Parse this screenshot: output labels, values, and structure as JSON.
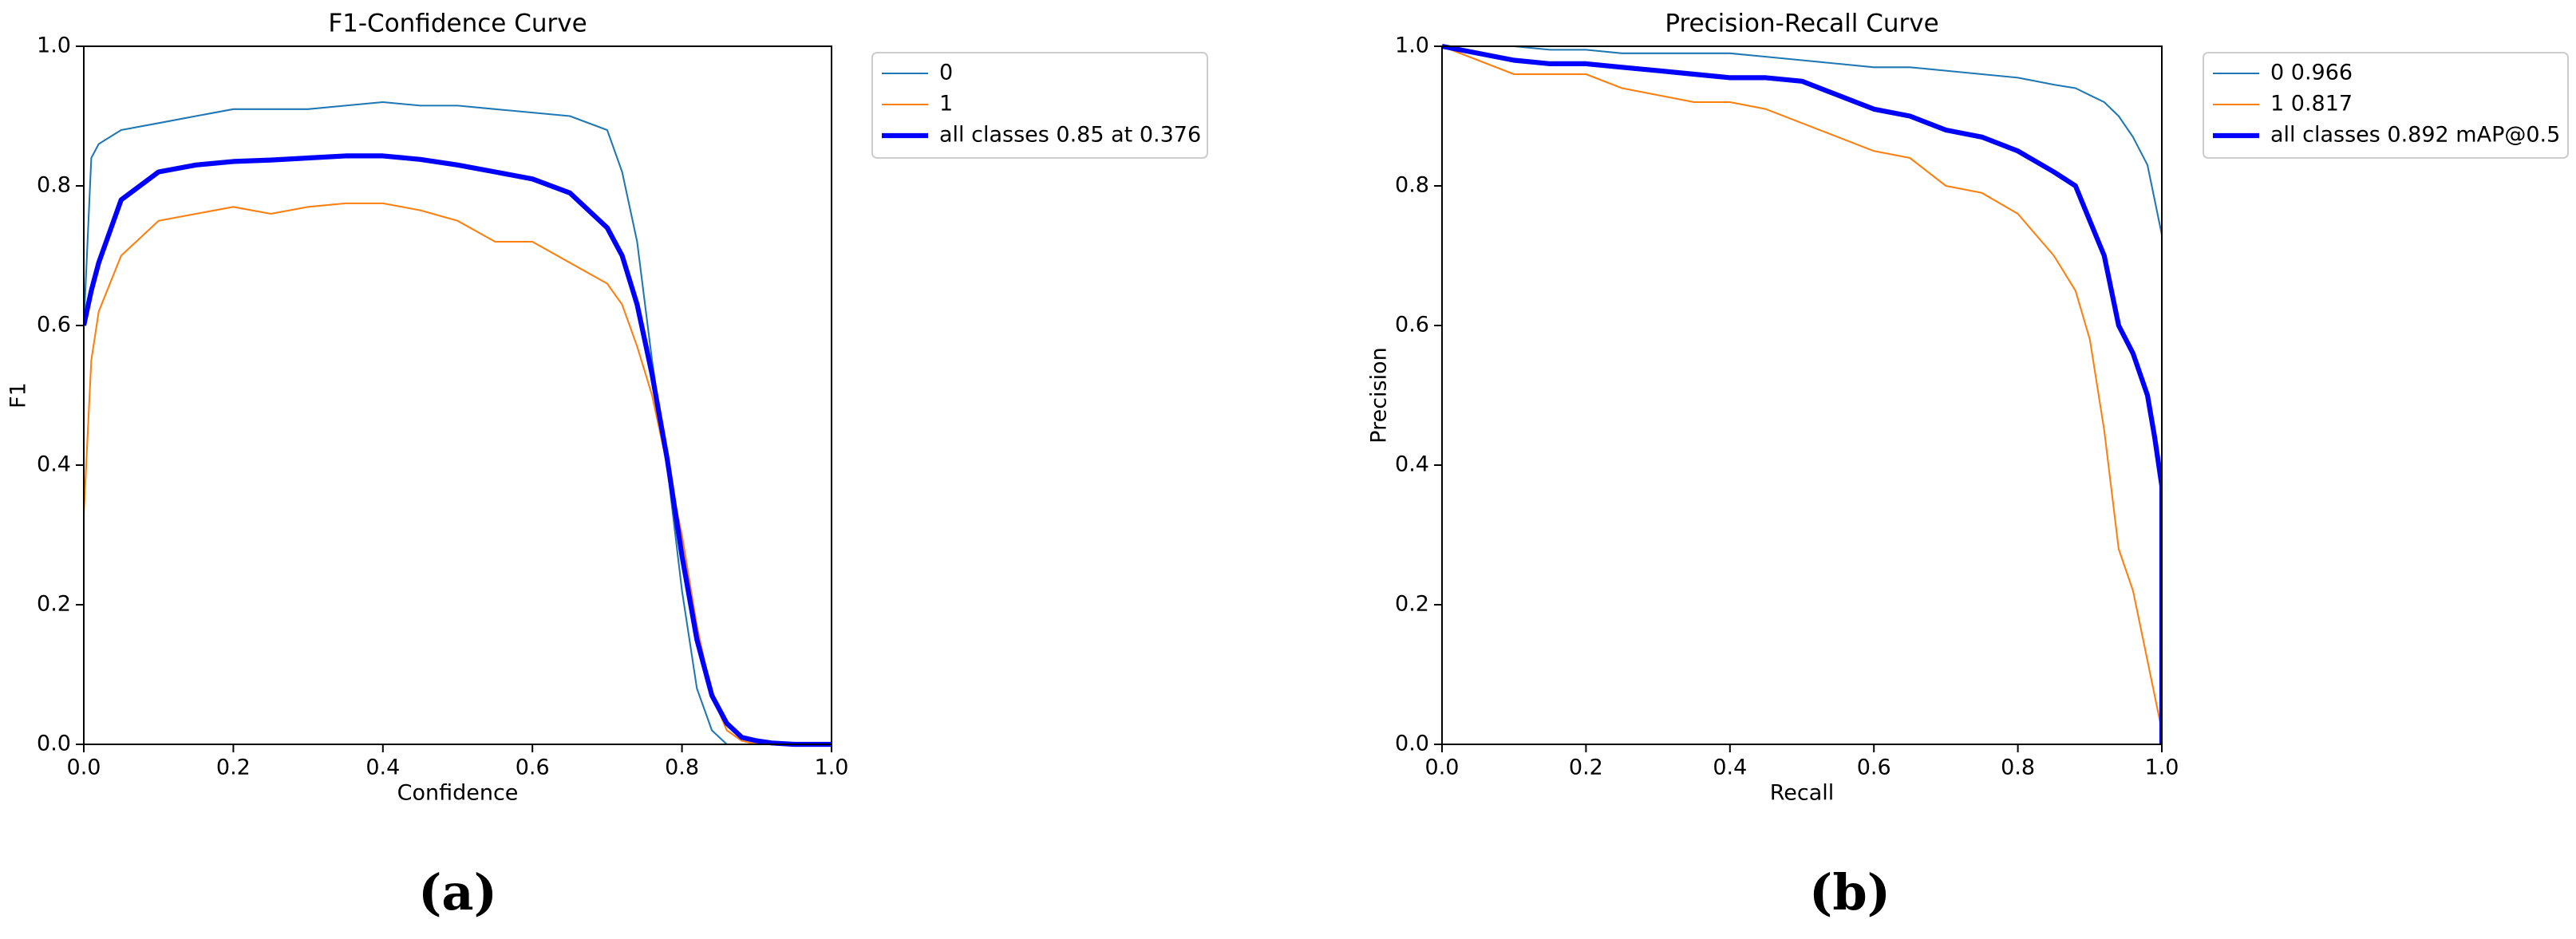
{
  "chart_data": [
    {
      "type": "line",
      "title": "F1-Confidence Curve",
      "caption": "(a)",
      "xlabel": "Confidence",
      "ylabel": "F1",
      "x": [
        0,
        0.01,
        0.02,
        0.05,
        0.1,
        0.15,
        0.2,
        0.25,
        0.3,
        0.35,
        0.4,
        0.45,
        0.5,
        0.55,
        0.6,
        0.65,
        0.7,
        0.72,
        0.74,
        0.76,
        0.78,
        0.8,
        0.82,
        0.84,
        0.86,
        0.88,
        0.9,
        0.92,
        0.95,
        1.0
      ],
      "series": [
        {
          "name": "0",
          "color": "#1f77b4",
          "width": 1,
          "values": [
            0.6,
            0.84,
            0.86,
            0.88,
            0.89,
            0.9,
            0.91,
            0.91,
            0.91,
            0.915,
            0.92,
            0.915,
            0.915,
            0.91,
            0.905,
            0.9,
            0.88,
            0.82,
            0.72,
            0.55,
            0.4,
            0.22,
            0.08,
            0.02,
            0,
            null,
            null,
            null,
            null,
            null
          ]
        },
        {
          "name": "1",
          "color": "#ff7f0e",
          "width": 1,
          "values": [
            0.33,
            0.55,
            0.62,
            0.7,
            0.75,
            0.76,
            0.77,
            0.76,
            0.77,
            0.775,
            0.775,
            0.765,
            0.75,
            0.72,
            0.72,
            0.69,
            0.66,
            0.63,
            0.57,
            0.5,
            0.4,
            0.3,
            0.17,
            0.07,
            0.02,
            0.005,
            0,
            null,
            null,
            null
          ]
        },
        {
          "name": "all classes 0.85 at 0.376",
          "color": "#0000ff",
          "width": 3,
          "values": [
            0.6,
            0.65,
            0.69,
            0.78,
            0.82,
            0.83,
            0.835,
            0.837,
            0.84,
            0.843,
            0.843,
            0.838,
            0.83,
            0.82,
            0.81,
            0.79,
            0.74,
            0.7,
            0.63,
            0.53,
            0.41,
            0.27,
            0.15,
            0.07,
            0.03,
            0.01,
            0.005,
            0.002,
            0,
            0
          ]
        }
      ],
      "xlim": [
        0,
        1
      ],
      "ylim": [
        0,
        1
      ],
      "xticks": [
        {
          "value": 0,
          "label": "0.0"
        },
        0.2,
        0.4,
        0.6,
        0.8,
        {
          "value": 1,
          "label": "1.0"
        }
      ],
      "yticks": [
        {
          "value": 0,
          "label": "0.0"
        },
        0.2,
        0.4,
        0.6,
        0.8,
        {
          "value": 1,
          "label": "1.0"
        }
      ],
      "legend": "outside upper left"
    },
    {
      "type": "line",
      "title": "Precision-Recall Curve",
      "caption": "(b)",
      "xlabel": "Recall",
      "ylabel": "Precision",
      "x": [
        0,
        0.1,
        0.15,
        0.2,
        0.25,
        0.3,
        0.35,
        0.4,
        0.45,
        0.5,
        0.55,
        0.6,
        0.65,
        0.7,
        0.75,
        0.8,
        0.85,
        0.88,
        0.9,
        0.92,
        0.94,
        0.96,
        0.98,
        0.99,
        1.0,
        1.0
      ],
      "series": [
        {
          "name": "0 0.966",
          "color": "#1f77b4",
          "width": 1,
          "values": [
            1,
            1,
            0.995,
            0.995,
            0.99,
            0.99,
            0.99,
            0.99,
            0.985,
            0.98,
            0.975,
            0.97,
            0.97,
            0.965,
            0.96,
            0.955,
            0.945,
            0.94,
            0.93,
            0.92,
            0.9,
            0.87,
            0.83,
            0.78,
            0.73,
            0
          ]
        },
        {
          "name": "1 0.817",
          "color": "#ff7f0e",
          "width": 1,
          "values": [
            1,
            0.96,
            0.96,
            0.96,
            0.94,
            0.93,
            0.92,
            0.92,
            0.91,
            0.89,
            0.87,
            0.85,
            0.84,
            0.8,
            0.79,
            0.76,
            0.7,
            0.65,
            0.58,
            0.45,
            0.28,
            0.22,
            0.12,
            0.07,
            0.02,
            0
          ]
        },
        {
          "name": "all classes 0.892 mAP@0.5",
          "color": "#0000ff",
          "width": 3,
          "values": [
            1,
            0.98,
            0.975,
            0.975,
            0.97,
            0.965,
            0.96,
            0.955,
            0.955,
            0.95,
            0.93,
            0.91,
            0.9,
            0.88,
            0.87,
            0.85,
            0.82,
            0.8,
            0.75,
            0.7,
            0.6,
            0.56,
            0.5,
            0.44,
            0.37,
            0
          ]
        }
      ],
      "xlim": [
        0,
        1
      ],
      "ylim": [
        0,
        1
      ],
      "xticks": [
        {
          "value": 0,
          "label": "0.0"
        },
        0.2,
        0.4,
        0.6,
        0.8,
        {
          "value": 1,
          "label": "1.0"
        }
      ],
      "yticks": [
        {
          "value": 0,
          "label": "0.0"
        },
        0.2,
        0.4,
        0.6,
        0.8,
        {
          "value": 1,
          "label": "1.0"
        }
      ],
      "legend": "outside upper left"
    }
  ]
}
